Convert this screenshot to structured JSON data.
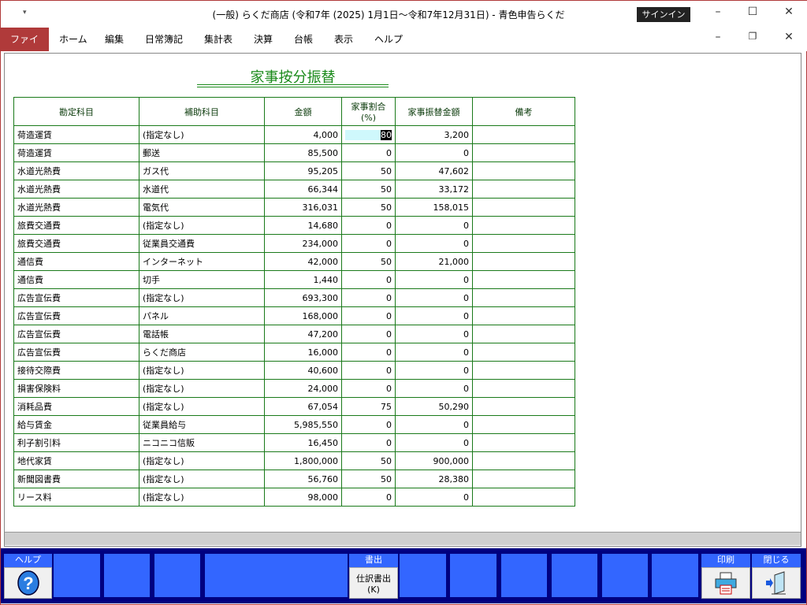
{
  "window": {
    "title": "(一般) らくだ商店 (令和7年 (2025) 1月1日～令和7年12月31日)  -  青色申告らくだ",
    "signin": "サインイン"
  },
  "menu": [
    "ファイル",
    "ホーム",
    "編集",
    "日常簿記",
    "集計表",
    "決算",
    "台帳",
    "表示",
    "ヘルプ"
  ],
  "heading": "家事按分振替",
  "columns": [
    "勘定科目",
    "補助科目",
    "金額",
    "家事割合(%)",
    "家事振替金額",
    "備考"
  ],
  "rows": [
    [
      "荷造運賃",
      "(指定なし)",
      "4,000",
      "80",
      "3,200",
      ""
    ],
    [
      "荷造運賃",
      "郵送",
      "85,500",
      "0",
      "0",
      ""
    ],
    [
      "水道光熱費",
      "ガス代",
      "95,205",
      "50",
      "47,602",
      ""
    ],
    [
      "水道光熱費",
      "水道代",
      "66,344",
      "50",
      "33,172",
      ""
    ],
    [
      "水道光熱費",
      "電気代",
      "316,031",
      "50",
      "158,015",
      ""
    ],
    [
      "旅費交通費",
      "(指定なし)",
      "14,680",
      "0",
      "0",
      ""
    ],
    [
      "旅費交通費",
      "従業員交通費",
      "234,000",
      "0",
      "0",
      ""
    ],
    [
      "通信費",
      "インターネット",
      "42,000",
      "50",
      "21,000",
      ""
    ],
    [
      "通信費",
      "切手",
      "1,440",
      "0",
      "0",
      ""
    ],
    [
      "広告宣伝費",
      "(指定なし)",
      "693,300",
      "0",
      "0",
      ""
    ],
    [
      "広告宣伝費",
      "パネル",
      "168,000",
      "0",
      "0",
      ""
    ],
    [
      "広告宣伝費",
      "電話帳",
      "47,200",
      "0",
      "0",
      ""
    ],
    [
      "広告宣伝費",
      "らくだ商店",
      "16,000",
      "0",
      "0",
      ""
    ],
    [
      "接待交際費",
      "(指定なし)",
      "40,600",
      "0",
      "0",
      ""
    ],
    [
      "損害保険料",
      "(指定なし)",
      "24,000",
      "0",
      "0",
      ""
    ],
    [
      "消耗品費",
      "(指定なし)",
      "67,054",
      "75",
      "50,290",
      ""
    ],
    [
      "給与賃金",
      "従業員給与",
      "5,985,550",
      "0",
      "0",
      ""
    ],
    [
      "利子割引料",
      "ニコニコ信販",
      "16,450",
      "0",
      "0",
      ""
    ],
    [
      "地代家賃",
      "(指定なし)",
      "1,800,000",
      "50",
      "900,000",
      ""
    ],
    [
      "新聞図書費",
      "(指定なし)",
      "56,760",
      "50",
      "28,380",
      ""
    ],
    [
      "リース料",
      "(指定なし)",
      "98,000",
      "0",
      "0",
      ""
    ]
  ],
  "fkeys": {
    "help_label": "ヘルプ",
    "export_label": "書出",
    "export_button": "仕訳書出",
    "export_key": "(K)",
    "print_label": "印刷",
    "close_label": "閉じる"
  }
}
